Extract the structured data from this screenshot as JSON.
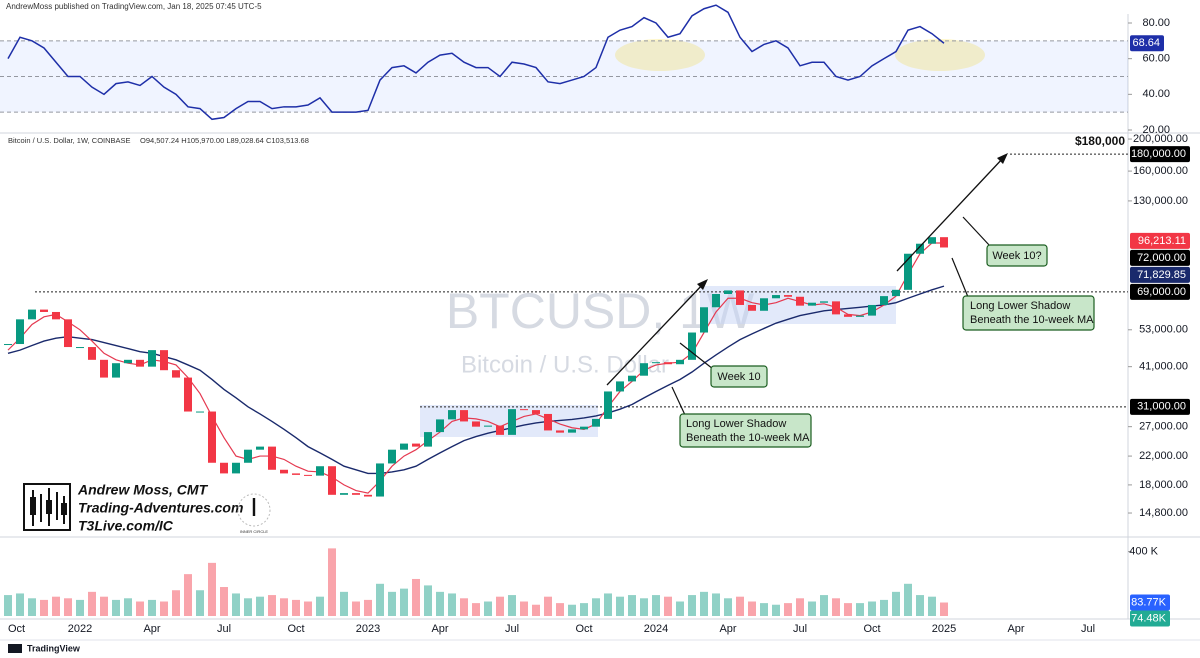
{
  "header": {
    "publisher": "AndrewMoss published on TradingView.com, Jan 18, 2025 07:45 UTC-5"
  },
  "footer": {
    "brand": "TradingView"
  },
  "branding": {
    "name": "Andrew Moss, CMT",
    "site": "Trading-Adventures.com",
    "link": "T3Live.com/IC",
    "badge_letter": "I",
    "badge": "INNER CIRCLE"
  },
  "chart_data": {
    "type": "candlestick",
    "title": "Bitcoin / U.S. Dollar, 1W, COINBASE",
    "ohlc_legend": "O94,507.24 H105,970.00 L89,028.64 C103,513.68",
    "watermark": [
      "BTCUSD, 1W",
      "Bitcoin / U.S. Dollar"
    ],
    "annotations": {
      "target": "$180,000",
      "week10_question": "Week 10?",
      "shadow_2025": [
        "Long Lower Shadow",
        "Beneath the 10-week MA"
      ],
      "week10": "Week 10",
      "shadow_2023": [
        "Long Lower Shadow",
        "Beneath the 10-week MA"
      ]
    },
    "categories": [
      "Oct",
      null,
      null,
      null,
      null,
      null,
      "2022",
      null,
      null,
      null,
      null,
      null,
      "Apr",
      null,
      null,
      null,
      null,
      null,
      "Jul",
      null,
      null,
      null,
      null,
      null,
      "Oct",
      null,
      null,
      null,
      null,
      null,
      "2023",
      null,
      null,
      null,
      null,
      null,
      "Apr",
      null,
      null,
      null,
      null,
      null,
      "Jul",
      null,
      null,
      null,
      null,
      null,
      "Oct",
      null,
      null,
      null,
      null,
      null,
      "2024",
      null,
      null,
      null,
      null,
      null,
      "Apr",
      null,
      null,
      null,
      null,
      null,
      "Jul",
      null,
      null,
      null,
      null,
      null,
      "Oct",
      null,
      null,
      null,
      null,
      null,
      "2025",
      null,
      null,
      null,
      null,
      null,
      "Apr",
      null,
      null,
      null,
      null,
      null,
      "Jul"
    ],
    "up_color": "#089981",
    "down_color": "#f23645",
    "price": {
      "log_scale": true,
      "ylim": [
        12700,
        205700
      ],
      "yticks": [
        {
          "value": 200000,
          "label": "200,000.00"
        },
        {
          "value": 160000,
          "label": "160,000.00"
        },
        {
          "value": 130000,
          "label": "130,000.00"
        },
        {
          "value": 53000,
          "label": "53,000.00"
        },
        {
          "value": 41000,
          "label": "41,000.00"
        },
        {
          "value": 27000,
          "label": "27,000.00"
        },
        {
          "value": 22000,
          "label": "22,000.00"
        },
        {
          "value": 18000,
          "label": "18,000.00"
        },
        {
          "value": 14800,
          "label": "14,800.00"
        }
      ],
      "close": [
        48000,
        57000,
        61000,
        60000,
        57000,
        47000,
        47000,
        43000,
        38000,
        42000,
        43000,
        41000,
        46000,
        40000,
        38000,
        30000,
        30000,
        21000,
        19500,
        21000,
        23000,
        23500,
        20000,
        19500,
        19300,
        19200,
        20500,
        16800,
        17000,
        16800,
        16600,
        20900,
        23000,
        24000,
        23500,
        26000,
        28400,
        30300,
        28000,
        27000,
        27200,
        25500,
        30500,
        30300,
        29500,
        26300,
        25900,
        26500,
        27000,
        28500,
        34500,
        37000,
        38500,
        42000,
        42300,
        41700,
        43000,
        52000,
        62000,
        68000,
        69700,
        63000,
        60500,
        66000,
        67500,
        66700,
        62700,
        64000,
        64600,
        59000,
        58000,
        58500,
        63000,
        67000,
        70000,
        90000,
        96500,
        101000,
        94000,
        null,
        null,
        null,
        null,
        null,
        null,
        null,
        null,
        null,
        null,
        null,
        null
      ],
      "ma10": {
        "color": "#e53950",
        "values": [
          46000,
          50000,
          55000,
          58000,
          59000,
          56000,
          53000,
          49000,
          45000,
          43000,
          42000,
          41500,
          43000,
          42500,
          41500,
          38000,
          34000,
          29000,
          25000,
          22000,
          21500,
          22000,
          22000,
          21500,
          20500,
          19800,
          19700,
          19000,
          18000,
          17300,
          17000,
          18500,
          20500,
          22000,
          23000,
          24500,
          26000,
          28000,
          28700,
          28500,
          28000,
          27000,
          28000,
          29000,
          29500,
          28500,
          27500,
          26800,
          26500,
          27500,
          31000,
          34500,
          37000,
          40000,
          41500,
          42000,
          42300,
          45000,
          52000,
          60000,
          66000,
          66000,
          64000,
          63000,
          64000,
          66000,
          64500,
          63000,
          63500,
          62000,
          59000,
          58500,
          60000,
          63000,
          67000,
          78000,
          90000,
          97000,
          97000,
          null,
          null,
          null,
          null,
          null,
          null,
          null,
          null,
          null,
          null,
          null,
          null
        ]
      },
      "ma40": {
        "color": "#1a2a6c",
        "values": [
          45000,
          46000,
          47500,
          49000,
          50000,
          50500,
          50000,
          49500,
          48500,
          47500,
          46500,
          45500,
          45000,
          44000,
          43000,
          41500,
          40000,
          37500,
          35000,
          33000,
          31000,
          29500,
          28000,
          26500,
          25000,
          23500,
          22500,
          21500,
          20500,
          20000,
          19500,
          19500,
          19700,
          20000,
          20500,
          21500,
          22500,
          23500,
          24500,
          25200,
          25800,
          26300,
          26800,
          27300,
          27700,
          28000,
          28200,
          28400,
          28700,
          29100,
          29700,
          30500,
          31500,
          33000,
          34500,
          36000,
          37500,
          39500,
          42000,
          44500,
          47000,
          49500,
          51500,
          53500,
          55500,
          57000,
          58500,
          59500,
          60500,
          61000,
          61500,
          62000,
          62500,
          63000,
          64000,
          66000,
          68000,
          70000,
          71829.85,
          null,
          null,
          null,
          null,
          null,
          null,
          null,
          null,
          null,
          null,
          null,
          null
        ]
      },
      "tags": [
        {
          "value": 180000,
          "label": "180,000.00",
          "color": "#000000"
        },
        {
          "value": 96213.11,
          "label": "96,213.11",
          "color": "#f23645"
        },
        {
          "value": 72000,
          "label": "72,000.00",
          "color": "#000000"
        },
        {
          "value": 71829.85,
          "label": "71,829.85",
          "color": "#1a2a6c"
        },
        {
          "value": 69000,
          "label": "69,000.00",
          "color": "#000000"
        },
        {
          "value": 31000,
          "label": "31,000.00",
          "color": "#000000"
        }
      ]
    },
    "rsi": {
      "color": "#1e2fa8",
      "ylim": [
        20,
        80
      ],
      "yticks": [
        {
          "value": 80,
          "label": "80.00"
        },
        {
          "value": 60,
          "label": "60.00"
        },
        {
          "value": 40,
          "label": "40.00"
        },
        {
          "value": 20,
          "label": "20.00"
        }
      ],
      "levels": [
        70,
        50,
        30
      ],
      "values": [
        60,
        72,
        70,
        66,
        58,
        50,
        50,
        44,
        40,
        46,
        47,
        45,
        50,
        44,
        40,
        33,
        32,
        26,
        27,
        32,
        36,
        36,
        32,
        33,
        33,
        34,
        38,
        30,
        30,
        30,
        31,
        48,
        55,
        56,
        52,
        58,
        62,
        63,
        58,
        55,
        55,
        50,
        58,
        57,
        55,
        47,
        46,
        48,
        50,
        55,
        72,
        76,
        78,
        83,
        80,
        72,
        74,
        84,
        88,
        90,
        86,
        72,
        64,
        68,
        70,
        66,
        56,
        58,
        58,
        50,
        48,
        50,
        56,
        60,
        64,
        76,
        78,
        74,
        68.64,
        null,
        null,
        null,
        null,
        null,
        null,
        null,
        null,
        null,
        null,
        null,
        null
      ],
      "tag": 68.64
    },
    "volume": {
      "ylim": [
        0,
        472
      ],
      "yticks": [
        {
          "value": 400,
          "label": "400 K"
        }
      ],
      "values": [
        130,
        140,
        110,
        100,
        120,
        110,
        100,
        150,
        120,
        100,
        110,
        90,
        100,
        90,
        160,
        260,
        160,
        330,
        180,
        140,
        110,
        120,
        130,
        110,
        100,
        90,
        120,
        420,
        150,
        90,
        100,
        200,
        150,
        170,
        230,
        190,
        150,
        140,
        110,
        80,
        90,
        120,
        130,
        90,
        70,
        120,
        80,
        70,
        80,
        110,
        140,
        120,
        130,
        110,
        130,
        120,
        90,
        130,
        150,
        140,
        110,
        120,
        90,
        80,
        70,
        80,
        110,
        90,
        130,
        110,
        80,
        80,
        90,
        100,
        150,
        200,
        130,
        120,
        83.77,
        null,
        null,
        null,
        null,
        null,
        null,
        null,
        null,
        null,
        null,
        null,
        null
      ],
      "tags": [
        {
          "value": 83.77,
          "label": "83.77K",
          "color": "#2962ff"
        },
        {
          "value": 74.48,
          "label": "74.48K",
          "color": "#22ab94"
        }
      ]
    }
  }
}
